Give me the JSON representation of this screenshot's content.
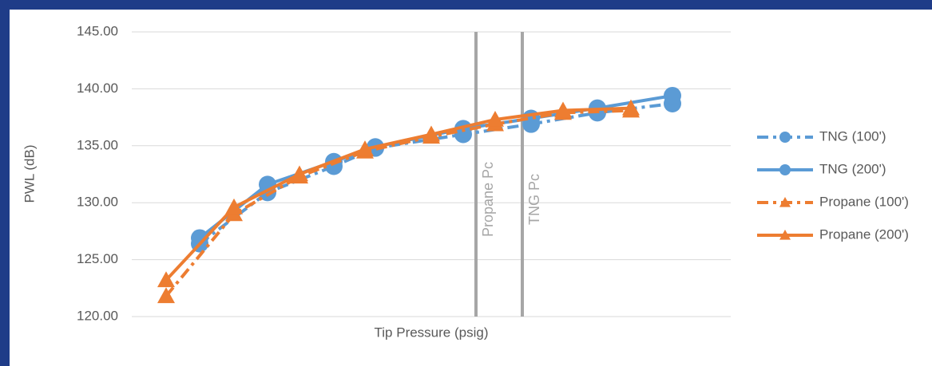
{
  "chart_data": {
    "type": "line",
    "x_label": "Tip Pressure (psig)",
    "y_label": "PWL (dB)",
    "xlim": [
      0,
      750
    ],
    "ylim": [
      120,
      145
    ],
    "yticks": [
      {
        "value": 120,
        "label": "120.00"
      },
      {
        "value": 125,
        "label": "125.00"
      },
      {
        "value": 130,
        "label": "130.00"
      },
      {
        "value": 135,
        "label": "135.00"
      },
      {
        "value": 140,
        "label": "140.00"
      },
      {
        "value": 145,
        "label": "145.00"
      }
    ],
    "grid": true,
    "legend": "right",
    "annotations": [
      {
        "text": "Propane Pc",
        "x": 431
      },
      {
        "text": "TNG Pc",
        "x": 489
      }
    ],
    "series": [
      {
        "name": "TNG (100')",
        "color": "#5b9bd5",
        "dash": true,
        "marker": "circle",
        "x": [
          85,
          170,
          253,
          305,
          415,
          500,
          583,
          677
        ],
        "values": [
          126.4,
          130.9,
          133.2,
          134.8,
          136.0,
          136.9,
          137.9,
          138.7
        ]
      },
      {
        "name": "TNG (200')",
        "color": "#5b9bd5",
        "dash": false,
        "marker": "circle",
        "x": [
          85,
          170,
          253,
          305,
          415,
          500,
          583,
          677
        ],
        "values": [
          126.9,
          131.6,
          133.6,
          134.9,
          136.5,
          137.4,
          138.3,
          139.4
        ]
      },
      {
        "name": "Propane (100')",
        "color": "#ed7d31",
        "dash": true,
        "marker": "triangle",
        "x": [
          43,
          128,
          210,
          292,
          375,
          455,
          540,
          625
        ],
        "values": [
          121.8,
          129.0,
          132.3,
          134.5,
          135.8,
          136.9,
          137.9,
          138.1
        ]
      },
      {
        "name": "Propane (200')",
        "color": "#ed7d31",
        "dash": false,
        "marker": "triangle",
        "x": [
          43,
          128,
          210,
          292,
          375,
          455,
          540,
          625
        ],
        "values": [
          123.2,
          129.6,
          132.5,
          134.7,
          136.0,
          137.3,
          138.1,
          138.3
        ]
      }
    ]
  }
}
